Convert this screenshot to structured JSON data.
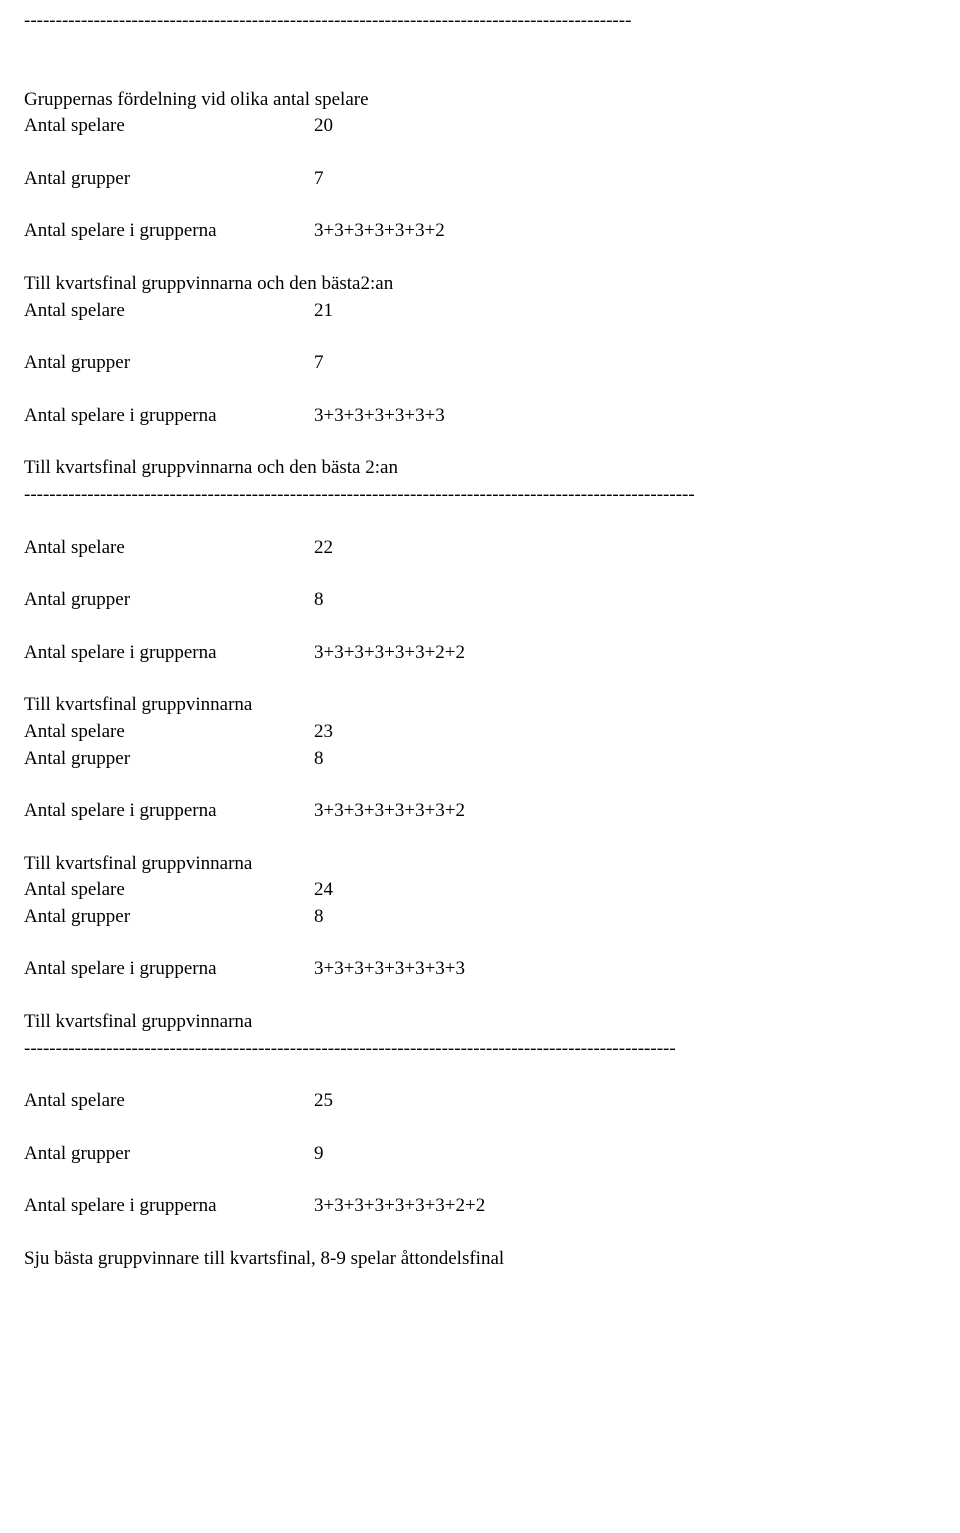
{
  "hr1": "------------------------------------------------------------------------------------------------",
  "hr2": "----------------------------------------------------------------------------------------------------------",
  "hr3": "-------------------------------------------------------------------------------------------------------",
  "heading": "Gruppernas fördelning vid olika antal spelare",
  "blocks": [
    {
      "rows": [
        {
          "label": "Antal spelare",
          "value": "20"
        }
      ],
      "spaced_rows": [
        {
          "label": "Antal grupper",
          "value": "7"
        },
        {
          "label": "Antal spelare i grupperna",
          "value": "3+3+3+3+3+3+2"
        }
      ],
      "trailer": "Till kvartsfinal gruppvinnarna och den bästa2:an",
      "next_rows": [
        {
          "label": "Antal spelare",
          "value": "21"
        }
      ],
      "next_spaced_rows": [
        {
          "label": "Antal grupper",
          "value": "7"
        },
        {
          "label": "Antal spelare i grupperna",
          "value": "3+3+3+3+3+3+3"
        }
      ],
      "next_trailer": "Till kvartsfinal gruppvinnarna och den bästa 2:an"
    }
  ],
  "section2": {
    "rows_a": [
      {
        "label": "Antal spelare",
        "value": "22"
      }
    ],
    "rows_b": [
      {
        "label": "Antal grupper",
        "value": "8"
      }
    ],
    "rows_c": [
      {
        "label": "Antal spelare i grupperna",
        "value": "3+3+3+3+3+3+2+2"
      }
    ],
    "trailer1": "Till kvartsfinal  gruppvinnarna",
    "rows_d": [
      {
        "label": "Antal spelare",
        "value": "23"
      },
      {
        "label": "Antal grupper",
        "value": "8"
      }
    ],
    "rows_e": [
      {
        "label": "Antal spelare i grupperna",
        "value": "3+3+3+3+3+3+3+2"
      }
    ],
    "trailer2": "Till kvartsfinal gruppvinnarna",
    "rows_f": [
      {
        "label": "Antal spelare",
        "value": "24"
      },
      {
        "label": "Antal grupper",
        "value": "8"
      }
    ],
    "rows_g": [
      {
        "label": "Antal spelare i grupperna",
        "value": "3+3+3+3+3+3+3+3"
      }
    ],
    "trailer3": "Till kvartsfinal gruppvinnarna"
  },
  "section3": {
    "rows_a": [
      {
        "label": "Antal spelare",
        "value": "25"
      }
    ],
    "rows_b": [
      {
        "label": "Antal grupper",
        "value": "9"
      }
    ],
    "rows_c": [
      {
        "label": "Antal spelare i grupperna",
        "value": "3+3+3+3+3+3+3+2+2"
      }
    ],
    "trailer": "Sju bästa gruppvinnare till kvartsfinal, 8-9 spelar åttondelsfinal"
  }
}
